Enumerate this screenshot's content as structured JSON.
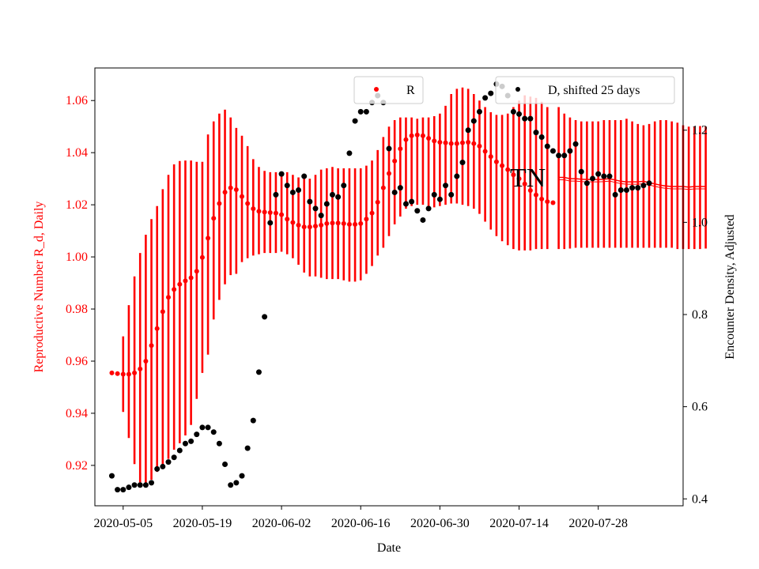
{
  "chart_data": {
    "type": "scatter",
    "xlabel": "Date",
    "y1label": "Reproductive Number R_d, Daily",
    "y2label": "Encounter Density, Adjusted",
    "annotation": "TN",
    "x_tick_labels": [
      "2020-05-05",
      "2020-05-19",
      "2020-06-02",
      "2020-06-16",
      "2020-06-30",
      "2020-07-14",
      "2020-07-28"
    ],
    "x_tick_days": [
      0,
      14,
      28,
      42,
      56,
      70,
      84
    ],
    "xlim_days": [
      -5,
      99
    ],
    "y1_ticks": [
      0.92,
      0.94,
      0.96,
      0.98,
      1.0,
      1.02,
      1.04,
      1.06
    ],
    "y1_tick_labels": [
      "0.92",
      "0.94",
      "0.96",
      "0.98",
      "1.00",
      "1.02",
      "1.04",
      "1.06"
    ],
    "y1lim": [
      0.9045,
      1.0725
    ],
    "y2_ticks": [
      0.4,
      0.6,
      0.8,
      1.0,
      1.2
    ],
    "y2_tick_labels": [
      "0.4",
      "0.6",
      "0.8",
      "1.0",
      "1.2"
    ],
    "y2lim": [
      0.385,
      1.335
    ],
    "colors": {
      "r_series": "#ff0000",
      "d_series": "#000000",
      "axis": "#000000"
    },
    "legend_r": {
      "label": "R",
      "placement": "upper-center"
    },
    "legend_d": {
      "label": "D, shifted 25 days",
      "placement": "upper-right"
    },
    "r_series": {
      "name": "R",
      "start_day": -2,
      "values": [
        0.9555,
        0.9552,
        0.955,
        0.955,
        0.9555,
        0.957,
        0.96,
        0.966,
        0.9725,
        0.979,
        0.9845,
        0.9875,
        0.9895,
        0.9908,
        0.992,
        0.9945,
        0.9998,
        1.0072,
        1.0148,
        1.0205,
        1.0248,
        1.0265,
        1.0258,
        1.0232,
        1.0205,
        1.0185,
        1.0175,
        1.0172,
        1.017,
        1.0168,
        1.0162,
        1.0145,
        1.0132,
        1.0122,
        1.0115,
        1.0115,
        1.0118,
        1.0122,
        1.0128,
        1.013,
        1.013,
        1.0128,
        1.0125,
        1.0125,
        1.0128,
        1.0145,
        1.0168,
        1.021,
        1.0265,
        1.032,
        1.0368,
        1.0415,
        1.045,
        1.0465,
        1.0468,
        1.0465,
        1.0455,
        1.0445,
        1.044,
        1.0438,
        1.0435,
        1.0435,
        1.0438,
        1.044,
        1.0435,
        1.0425,
        1.0405,
        1.0385,
        1.0365,
        1.035,
        1.0335,
        1.0315,
        1.03,
        1.028,
        1.0255,
        1.0238,
        1.0222,
        1.0212,
        1.0208
      ],
      "err_lo": [
        null,
        null,
        0.9405,
        0.9305,
        0.9205,
        0.9135,
        0.9125,
        0.9145,
        0.9175,
        0.92,
        0.9225,
        0.926,
        0.9285,
        0.9315,
        0.9355,
        0.9455,
        0.9555,
        0.9625,
        0.976,
        0.9835,
        0.9895,
        0.993,
        0.9935,
        0.998,
        0.9995,
        1.0005,
        1.001,
        1.0015,
        1.0015,
        1.0015,
        1.002,
        1.001,
        0.9995,
        0.997,
        0.994,
        0.9925,
        0.9925,
        0.992,
        0.9915,
        0.9915,
        0.9915,
        0.991,
        0.9905,
        0.9905,
        0.991,
        0.9935,
        0.9965,
        1.0005,
        1.0035,
        1.008,
        1.0125,
        1.0155,
        1.0185,
        1.0195,
        1.02,
        1.02,
        1.0195,
        1.019,
        1.0195,
        1.02,
        1.0205,
        1.0205,
        1.02,
        1.0195,
        1.0185,
        1.0165,
        1.0135,
        1.0105,
        1.008,
        1.006,
        1.0045,
        1.003,
        1.0025,
        1.0025,
        1.0025,
        1.003,
        1.003,
        1.003,
        null
      ],
      "err_hi": [
        null,
        null,
        0.9695,
        0.9815,
        0.9925,
        1.0015,
        1.0085,
        1.0145,
        1.0195,
        1.026,
        1.0315,
        1.0355,
        1.0368,
        1.037,
        1.037,
        1.0365,
        1.0365,
        1.047,
        1.052,
        1.055,
        1.0565,
        1.0535,
        1.0495,
        1.0465,
        1.0425,
        1.0375,
        1.0345,
        1.033,
        1.0325,
        1.0325,
        1.0325,
        1.0325,
        1.0315,
        1.0305,
        1.03,
        1.03,
        1.0315,
        1.0335,
        1.034,
        1.0345,
        1.034,
        1.034,
        1.034,
        1.034,
        1.034,
        1.035,
        1.037,
        1.041,
        1.046,
        1.05,
        1.0525,
        1.0535,
        1.0535,
        1.0535,
        1.053,
        1.0535,
        1.0535,
        1.054,
        1.055,
        1.058,
        1.0625,
        1.0645,
        1.065,
        1.0645,
        1.0625,
        1.06,
        1.0575,
        1.0555,
        1.0545,
        1.0545,
        1.055,
        1.0575,
        1.06,
        1.062,
        1.0615,
        1.061,
        1.0595,
        1.0575,
        null
      ]
    },
    "r_band": {
      "name": "R band",
      "start_day": 77,
      "center": [
        1.0305,
        1.0305,
        1.03,
        1.03,
        1.0298,
        1.0297,
        1.0297,
        1.0297,
        1.0298,
        1.03,
        1.0295,
        1.029,
        1.0288,
        1.0288,
        1.0288,
        1.029,
        1.0285,
        1.028,
        1.0275,
        1.0272,
        1.027,
        1.027,
        1.027,
        1.0268,
        1.027,
        1.027,
        1.027
      ],
      "lo": [
        1.003,
        1.003,
        1.0032,
        1.0035,
        1.0035,
        1.0035,
        1.0035,
        1.0035,
        1.0035,
        1.0035,
        1.0035,
        1.0035,
        1.0035,
        1.0035,
        1.0035,
        1.0035,
        1.0035,
        1.0035,
        1.0035,
        1.0035,
        1.0035,
        1.003,
        1.003,
        1.003,
        1.003,
        1.003,
        1.0032
      ],
      "hi": [
        1.0575,
        1.055,
        1.0535,
        1.0525,
        1.052,
        1.052,
        1.052,
        1.052,
        1.0525,
        1.0525,
        1.0525,
        1.0525,
        1.053,
        1.052,
        1.051,
        1.0505,
        1.051,
        1.052,
        1.0525,
        1.0525,
        1.052,
        1.0515,
        1.0505,
        1.05,
        1.05,
        1.0502,
        1.05
      ]
    },
    "d_series": {
      "name": "D, shifted 25 days",
      "x_days": [
        -2,
        -1,
        0,
        1,
        2,
        3,
        4,
        5,
        6,
        7,
        8,
        9,
        10,
        11,
        12,
        13,
        14,
        15,
        16,
        17,
        18,
        19,
        20,
        21,
        22,
        23,
        24,
        25,
        26,
        27,
        28,
        29,
        30,
        31,
        32,
        33,
        34,
        35,
        36,
        37,
        38,
        39,
        40,
        41,
        42,
        43,
        44,
        45,
        46,
        47,
        48,
        49,
        50,
        51,
        52,
        53,
        54,
        55,
        56,
        57,
        58,
        59,
        60,
        61,
        62,
        63,
        64,
        65,
        66,
        67,
        68,
        69,
        70,
        71,
        72,
        73,
        74,
        75,
        76,
        77,
        78,
        79,
        80,
        81,
        82,
        83,
        84,
        85,
        86,
        87,
        88,
        89,
        90,
        91,
        92,
        93
      ],
      "values": [
        0.45,
        0.42,
        0.42,
        0.425,
        0.43,
        0.43,
        0.43,
        0.435,
        0.465,
        0.47,
        0.48,
        0.49,
        0.505,
        0.52,
        0.525,
        0.54,
        0.555,
        0.555,
        0.545,
        0.52,
        0.475,
        0.43,
        0.435,
        0.45,
        0.51,
        0.57,
        0.675,
        0.795,
        0.999,
        1.06,
        1.105,
        1.08,
        1.065,
        1.07,
        1.1,
        1.045,
        1.03,
        1.015,
        1.04,
        1.06,
        1.055,
        1.08,
        1.15,
        1.22,
        1.24,
        1.24,
        1.26,
        1.275,
        1.26,
        1.16,
        1.065,
        1.075,
        1.04,
        1.045,
        1.025,
        1.005,
        1.03,
        1.06,
        1.05,
        1.08,
        1.06,
        1.1,
        1.13,
        1.2,
        1.22,
        1.24,
        1.27,
        1.28,
        1.3,
        1.295,
        1.275,
        1.24,
        1.235,
        1.225,
        1.225,
        1.195,
        1.185,
        1.165,
        1.155,
        1.145,
        1.145,
        1.155,
        1.17,
        1.11,
        1.085,
        1.095,
        1.105,
        1.1,
        1.1,
        1.06,
        1.07,
        1.07,
        1.075,
        1.075,
        1.08,
        1.085
      ]
    }
  }
}
